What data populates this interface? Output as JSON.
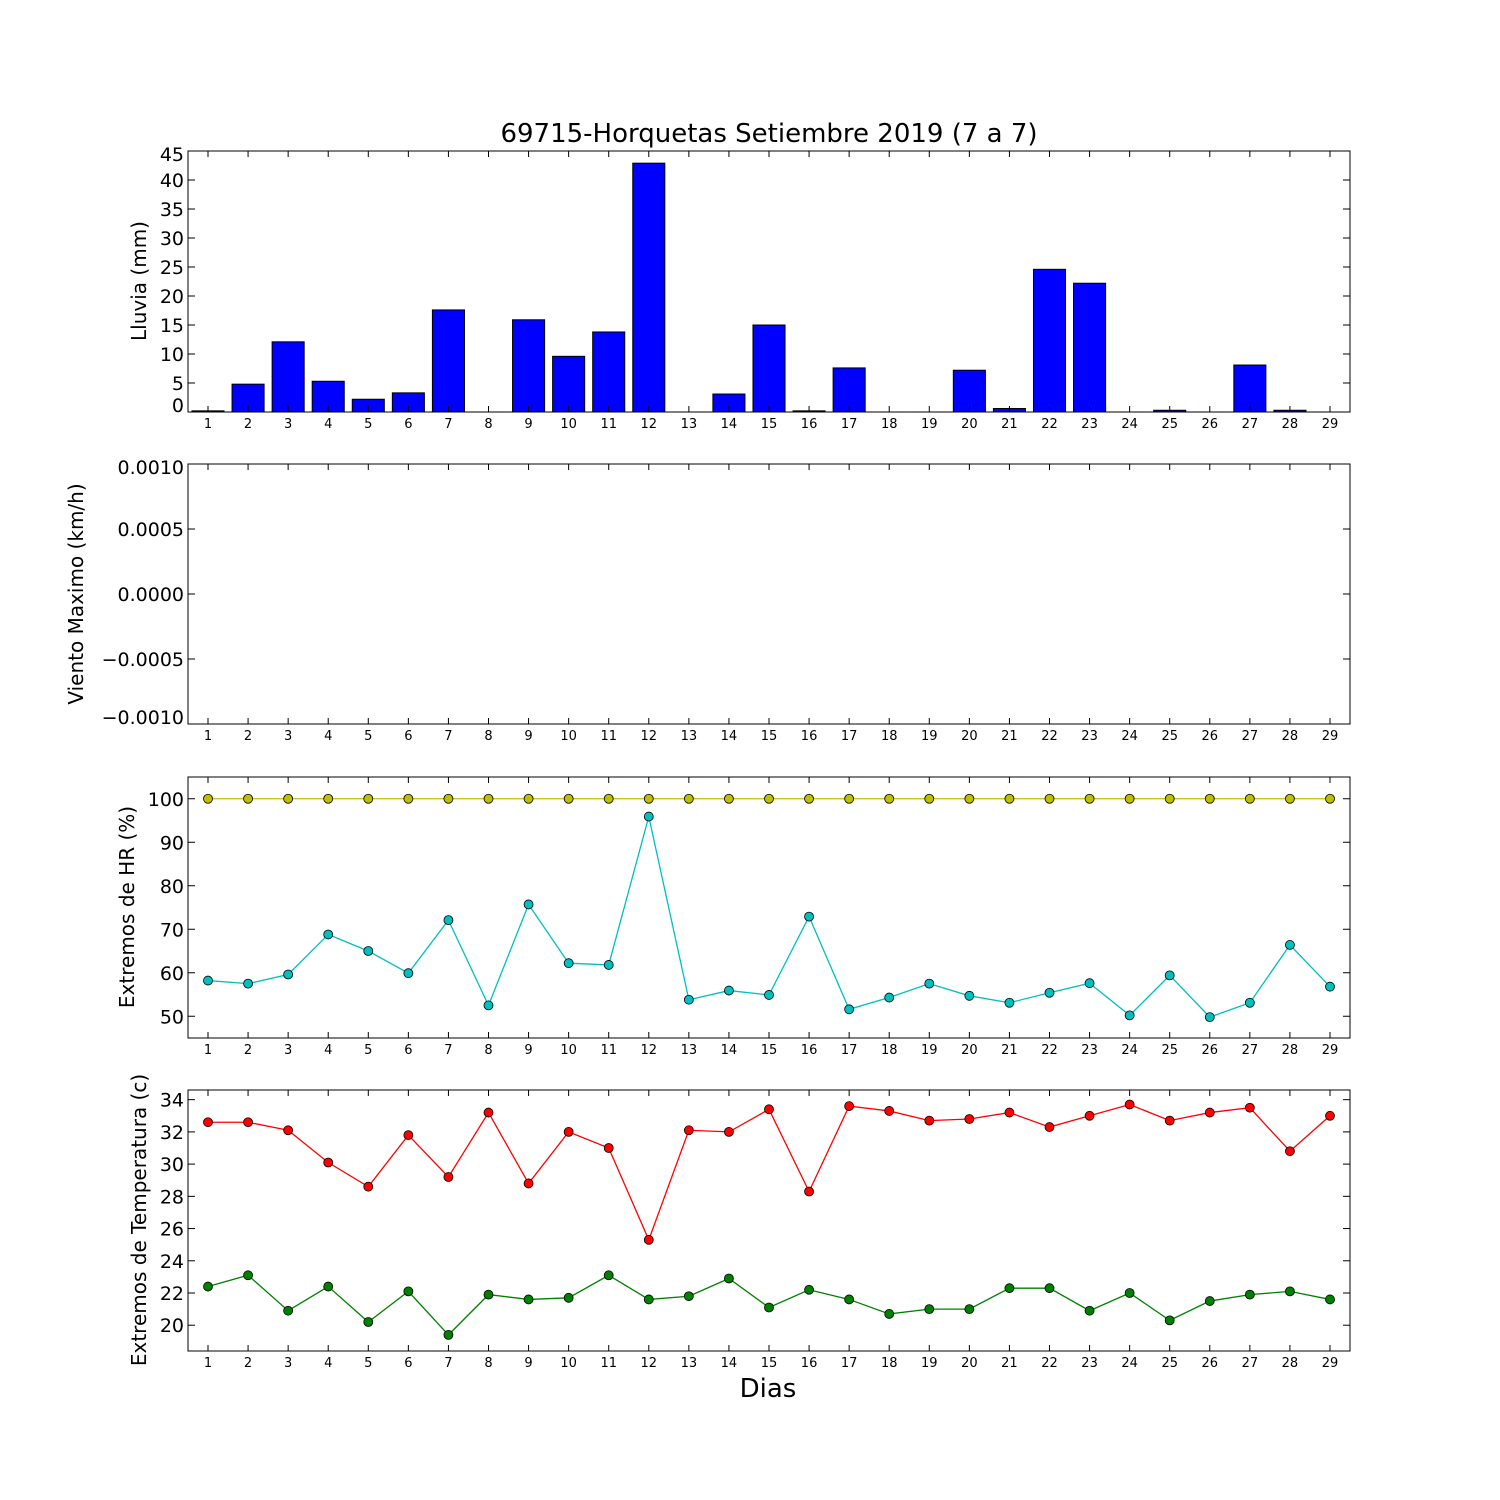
{
  "chart_data": [
    {
      "type": "bar",
      "title": "69715-Horquetas Setiembre 2019  (7 a 7)",
      "ylabel": "Lluvia (mm)",
      "xlabel": "",
      "ylim": [
        0,
        45
      ],
      "yticks": [
        "0",
        "5",
        "10",
        "15",
        "20",
        "25",
        "30",
        "35",
        "40",
        "45"
      ],
      "xticks": [
        "1",
        "2",
        "3",
        "4",
        "5",
        "6",
        "7",
        "8",
        "9",
        "10",
        "11",
        "12",
        "13",
        "14",
        "15",
        "16",
        "17",
        "18",
        "19",
        "20",
        "21",
        "22",
        "23",
        "24",
        "25",
        "26",
        "27",
        "28",
        "29"
      ],
      "categories": [
        1,
        2,
        3,
        4,
        5,
        6,
        7,
        8,
        9,
        10,
        11,
        12,
        13,
        14,
        15,
        16,
        17,
        18,
        19,
        20,
        21,
        22,
        23,
        24,
        25,
        26,
        27,
        28,
        29
      ],
      "values": [
        0.2,
        4.8,
        12.1,
        5.3,
        2.2,
        3.3,
        17.6,
        0,
        15.9,
        9.6,
        13.8,
        42.9,
        0,
        3.1,
        15.0,
        0.2,
        7.6,
        0,
        0,
        7.2,
        0.6,
        24.6,
        22.2,
        0,
        0.3,
        0,
        8.1,
        0.3,
        0
      ],
      "color": "#0000ff",
      "grid": false
    },
    {
      "type": "line",
      "ylabel": "Viento Maximo (km/h)",
      "ylim": [
        -0.001,
        0.001
      ],
      "yticks": [
        "−0.0010",
        "−0.0005",
        "0.0000",
        "0.0005",
        "0.0010"
      ],
      "xticks": [
        "1",
        "2",
        "3",
        "4",
        "5",
        "6",
        "7",
        "8",
        "9",
        "10",
        "11",
        "12",
        "13",
        "14",
        "15",
        "16",
        "17",
        "18",
        "19",
        "20",
        "21",
        "22",
        "23",
        "24",
        "25",
        "26",
        "27",
        "28",
        "29"
      ],
      "series": [],
      "grid": false
    },
    {
      "type": "line",
      "ylabel": "Extremos de HR (%)",
      "ylim": [
        45,
        105
      ],
      "yticks": [
        "50",
        "60",
        "70",
        "80",
        "90",
        "100"
      ],
      "xticks": [
        "1",
        "2",
        "3",
        "4",
        "5",
        "6",
        "7",
        "8",
        "9",
        "10",
        "11",
        "12",
        "13",
        "14",
        "15",
        "16",
        "17",
        "18",
        "19",
        "20",
        "21",
        "22",
        "23",
        "24",
        "25",
        "26",
        "27",
        "28",
        "29"
      ],
      "x": [
        1,
        2,
        3,
        4,
        5,
        6,
        7,
        8,
        9,
        10,
        11,
        12,
        13,
        14,
        15,
        16,
        17,
        18,
        19,
        20,
        21,
        22,
        23,
        24,
        25,
        26,
        27,
        28,
        29
      ],
      "series": [
        {
          "color": "#bfbf00",
          "values": [
            100,
            100,
            100,
            100,
            100,
            100,
            100,
            100,
            100,
            100,
            100,
            100,
            100,
            100,
            100,
            100,
            100,
            100,
            100,
            100,
            100,
            100,
            100,
            100,
            100,
            100,
            100,
            100,
            100
          ]
        },
        {
          "color": "#00bfbf",
          "values": [
            58.2,
            57.5,
            59.6,
            68.8,
            65.0,
            59.9,
            72.1,
            52.5,
            75.7,
            62.2,
            61.8,
            95.9,
            53.8,
            55.9,
            54.9,
            72.9,
            51.6,
            54.3,
            57.5,
            54.7,
            53.1,
            55.4,
            57.6,
            50.2,
            59.4,
            49.8,
            53.1,
            66.4,
            56.8
          ]
        }
      ],
      "grid": false
    },
    {
      "type": "line",
      "ylabel": "Extremos de Temperatura (c)",
      "xlabel": "Dias",
      "ylim": [
        18.4,
        34.6
      ],
      "yticks": [
        "20",
        "22",
        "24",
        "26",
        "28",
        "30",
        "32",
        "34"
      ],
      "xticks": [
        "1",
        "2",
        "3",
        "4",
        "5",
        "6",
        "7",
        "8",
        "9",
        "10",
        "11",
        "12",
        "13",
        "14",
        "15",
        "16",
        "17",
        "18",
        "19",
        "20",
        "21",
        "22",
        "23",
        "24",
        "25",
        "26",
        "27",
        "28",
        "29"
      ],
      "x": [
        1,
        2,
        3,
        4,
        5,
        6,
        7,
        8,
        9,
        10,
        11,
        12,
        13,
        14,
        15,
        16,
        17,
        18,
        19,
        20,
        21,
        22,
        23,
        24,
        25,
        26,
        27,
        28,
        29
      ],
      "series": [
        {
          "color": "#ff0000",
          "values": [
            32.6,
            32.6,
            32.1,
            30.1,
            28.6,
            31.8,
            29.2,
            33.2,
            28.8,
            32.0,
            31.0,
            25.3,
            32.1,
            32.0,
            33.4,
            28.3,
            33.6,
            33.3,
            32.7,
            32.8,
            33.2,
            32.3,
            33.0,
            33.7,
            32.7,
            33.2,
            33.5,
            30.8,
            33.0
          ]
        },
        {
          "color": "#008000",
          "values": [
            22.4,
            23.1,
            20.9,
            22.4,
            20.2,
            22.1,
            19.4,
            21.9,
            21.6,
            21.7,
            23.1,
            21.6,
            21.8,
            22.9,
            21.1,
            22.2,
            21.6,
            20.7,
            21.0,
            21.0,
            22.3,
            22.3,
            20.9,
            22.0,
            20.3,
            21.5,
            21.9,
            22.1,
            21.6
          ]
        }
      ],
      "grid": false
    }
  ]
}
